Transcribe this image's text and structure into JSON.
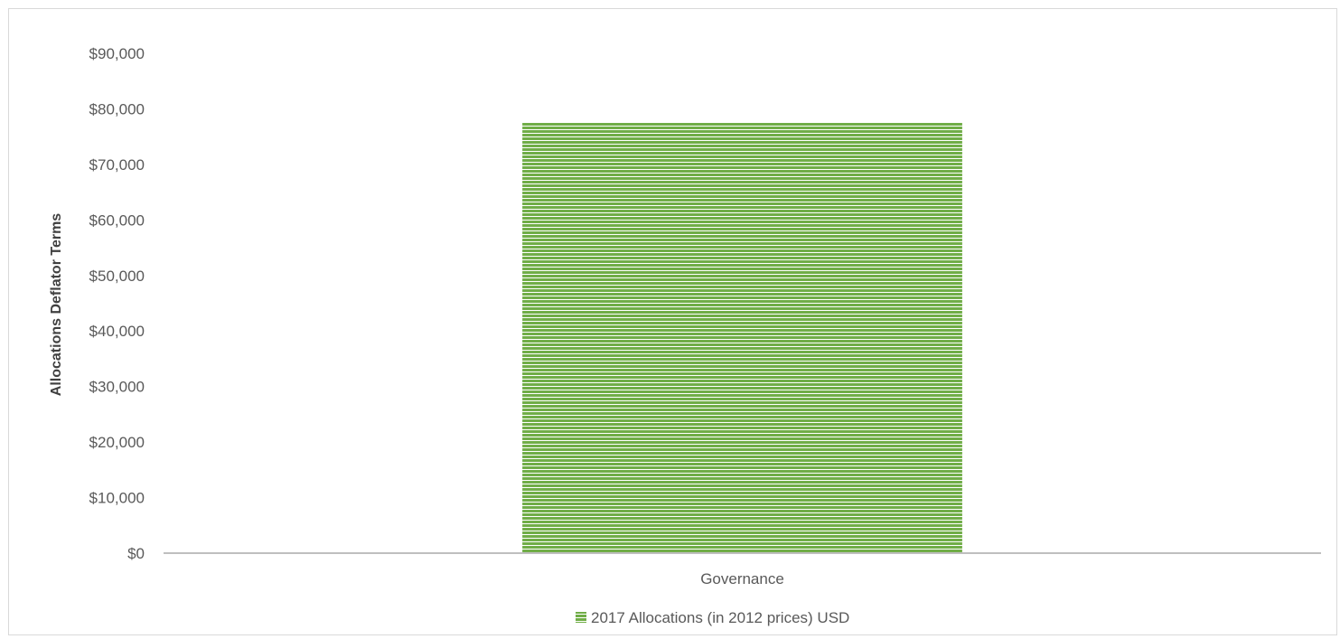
{
  "chart_data": {
    "type": "bar",
    "categories": [
      "Governance"
    ],
    "series": [
      {
        "name": "2017 Allocations (in 2012 prices) USD",
        "values": [
          77500
        ]
      }
    ],
    "title": "",
    "xlabel": "",
    "ylabel": "Allocations Deflator Terms",
    "ylim": [
      0,
      90000
    ],
    "yticks": [
      0,
      10000,
      20000,
      30000,
      40000,
      50000,
      60000,
      70000,
      80000,
      90000
    ],
    "ytick_labels": [
      "$0",
      "$10,000",
      "$20,000",
      "$30,000",
      "$40,000",
      "$50,000",
      "$60,000",
      "$70,000",
      "$80,000",
      "$90,000"
    ],
    "grid": false,
    "legend_position": "bottom",
    "colors": {
      "bar": "#70ad47",
      "bar_stripe": "#ffffff",
      "axis": "#bfbfbf"
    }
  }
}
